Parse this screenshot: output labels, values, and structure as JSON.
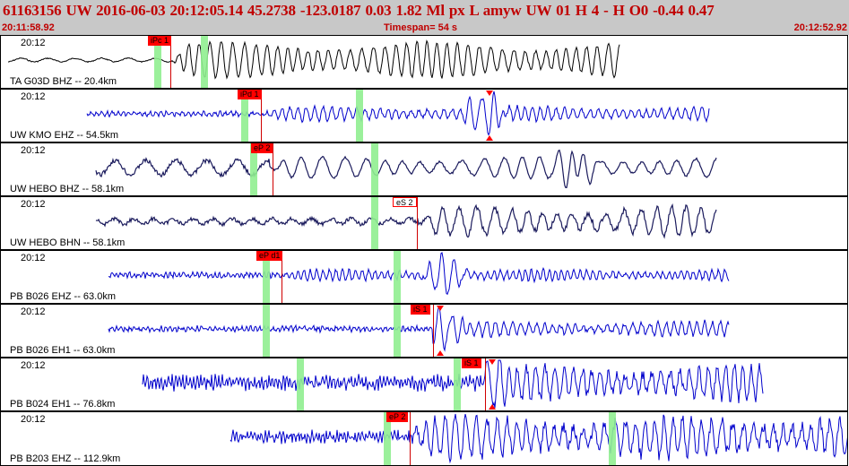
{
  "header": {
    "event_line": "61163156 UW 2016-06-03 20:12:05.14   45.2738 -123.0187   0.03  1.82 Ml  px  L amyw     UW 01  H   4  -  H O0    -0.44  0.47",
    "start_time": "20:11:58.92",
    "timespan": "Timespan=  54 s",
    "end_time": "20:12:52.92"
  },
  "colors": {
    "header_text": "#c00000",
    "header_bg": "#c8c8c8",
    "trace_black": "#000000",
    "trace_blue": "#0000cc",
    "trace_navy": "#1a1a5c",
    "pick": "#ff0000",
    "window_marker": "#90ee90"
  },
  "traces": [
    {
      "time": "20:12",
      "label": "TA G03D BHZ -- 20.4km",
      "picks": [
        {
          "text": "iPc 1",
          "style": "solid"
        }
      ]
    },
    {
      "time": "20:12",
      "label": "UW KMO EHZ -- 54.5km",
      "picks": [
        {
          "text": "iPd 1",
          "style": "solid"
        }
      ]
    },
    {
      "time": "20:12",
      "label": "UW HEBO BHZ -- 58.1km",
      "picks": [
        {
          "text": "eP 2",
          "style": "solid"
        }
      ]
    },
    {
      "time": "20:12",
      "label": "UW HEBO BHN -- 58.1km",
      "picks": [
        {
          "text": "eS 2",
          "style": "open"
        }
      ]
    },
    {
      "time": "20:12",
      "label": "PB B026 EHZ -- 63.0km",
      "picks": [
        {
          "text": "eP d1",
          "style": "solid"
        }
      ]
    },
    {
      "time": "20:12",
      "label": "PB B026 EH1 -- 63.0km",
      "picks": [
        {
          "text": "iS 1",
          "style": "solid"
        }
      ]
    },
    {
      "time": "20:12",
      "label": "PB B024 EH1 -- 76.8km",
      "picks": [
        {
          "text": "iS 1",
          "style": "solid"
        }
      ]
    },
    {
      "time": "20:12",
      "label": "PB B203 EHZ -- 112.9km",
      "picks": [
        {
          "text": "eP 2",
          "style": "solid"
        }
      ]
    }
  ]
}
